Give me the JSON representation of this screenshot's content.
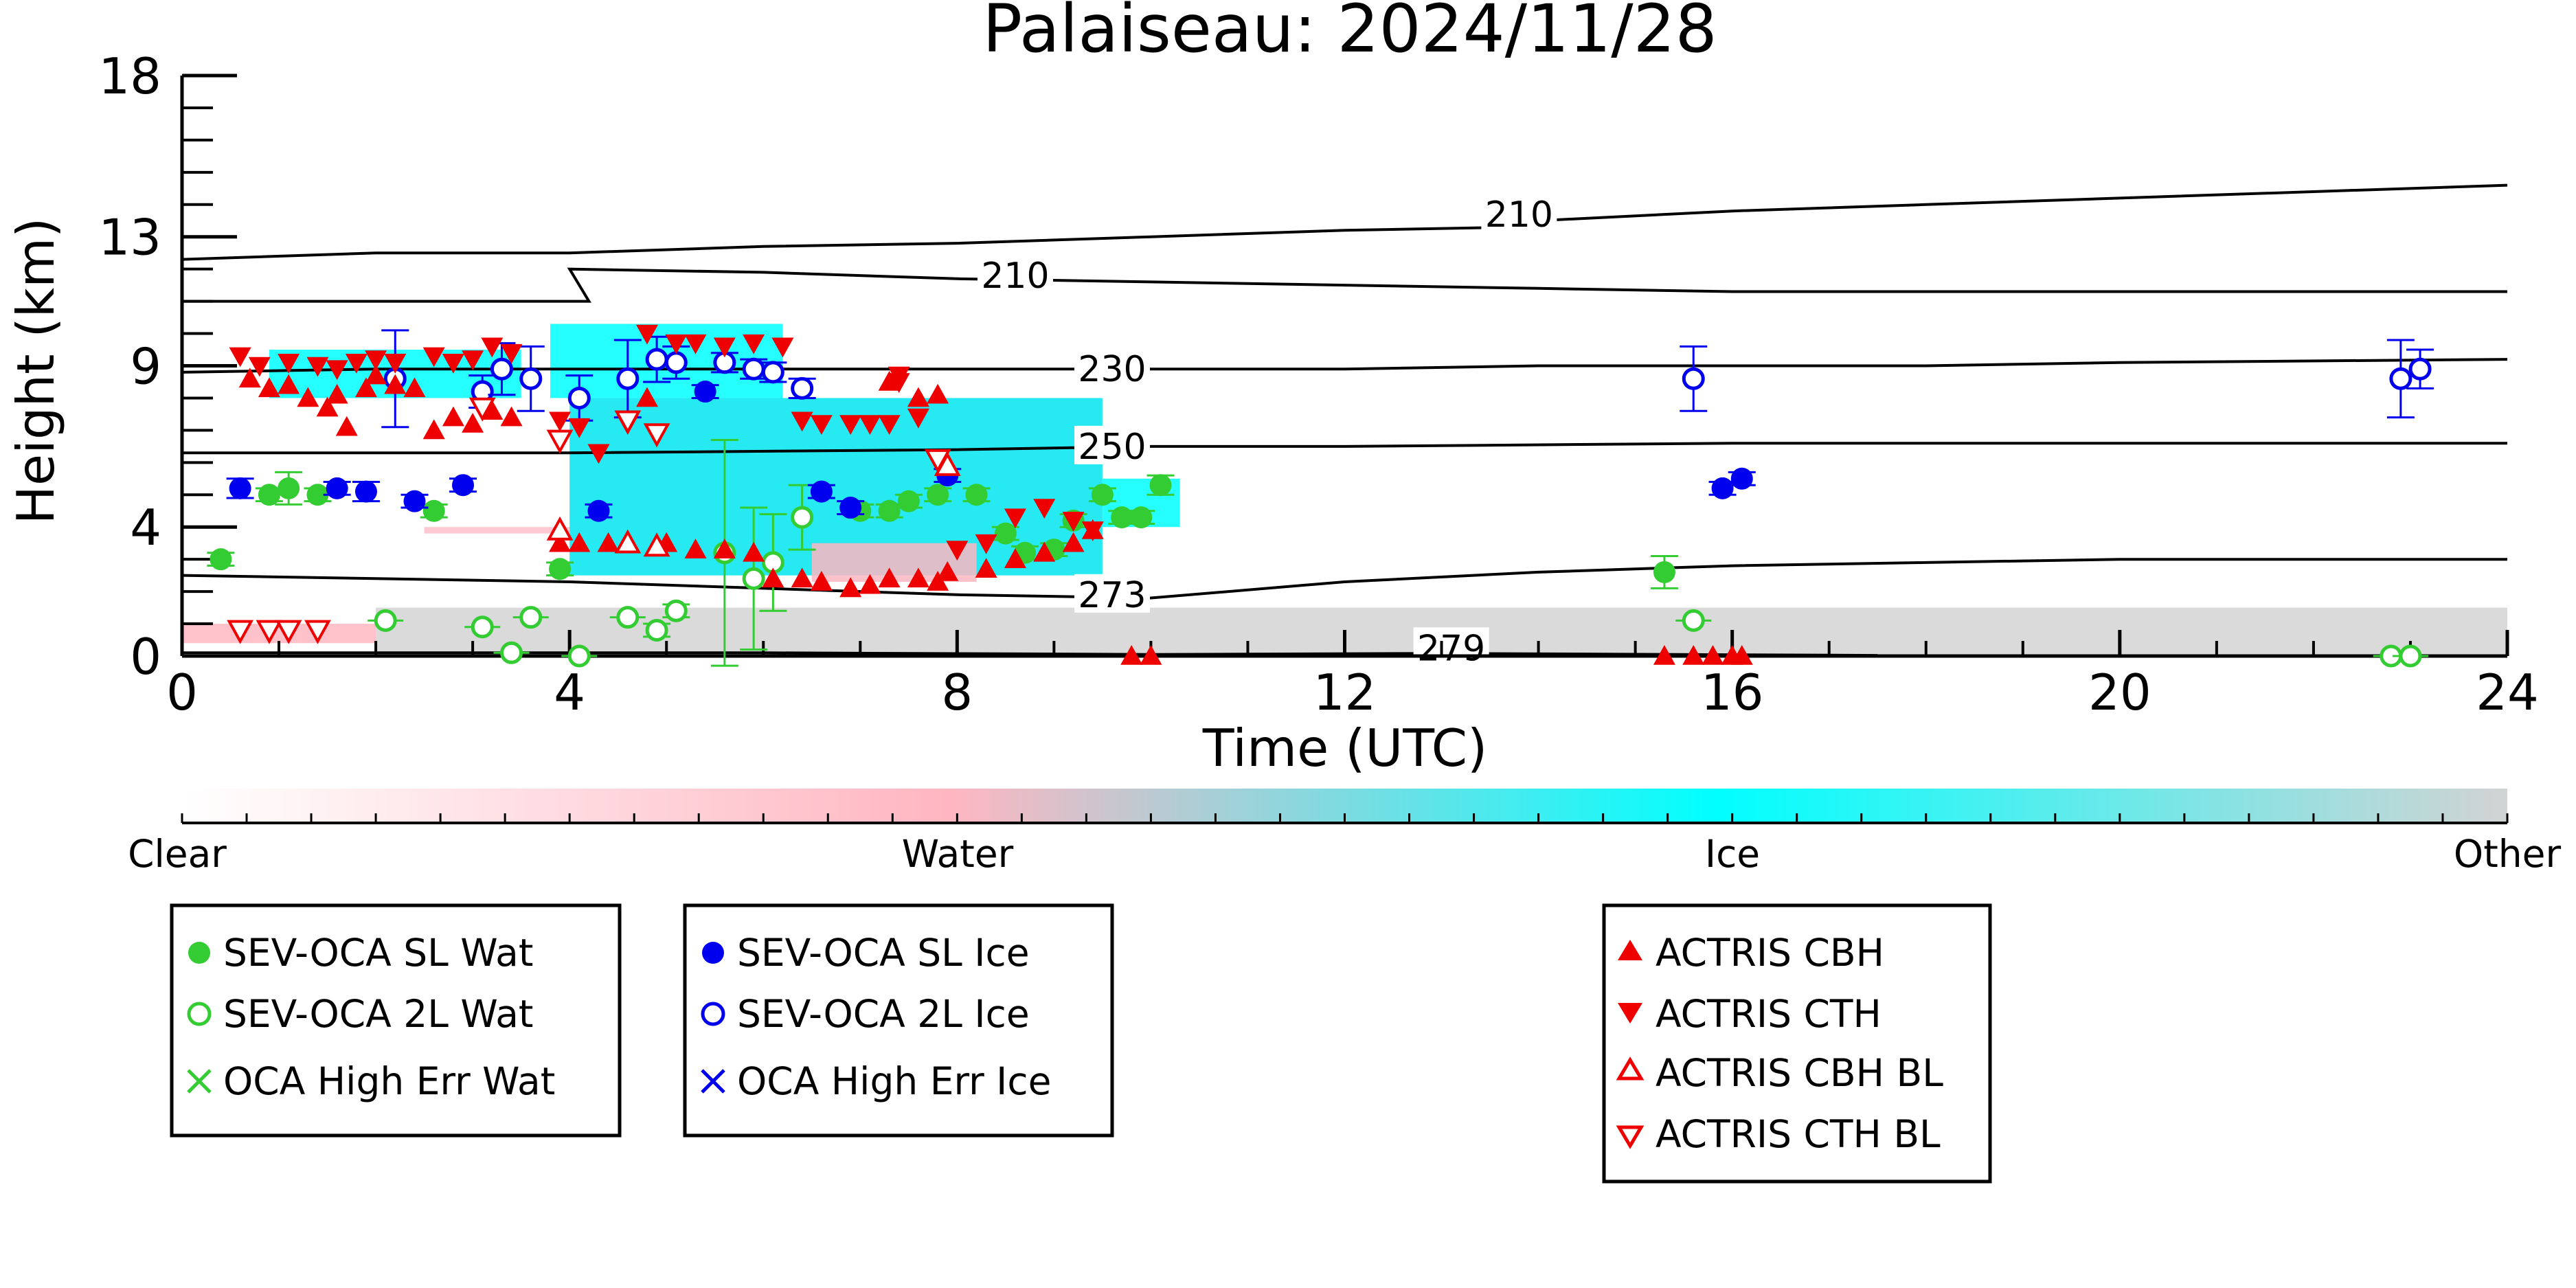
{
  "chart_data": {
    "type": "scatter",
    "title": "Palaiseau: 2024/11/28",
    "xlabel": "Time (UTC)",
    "ylabel": "Height (km)",
    "xlim": [
      0,
      24
    ],
    "ylim": [
      0,
      18
    ],
    "xticks": [
      0,
      4,
      8,
      12,
      16,
      20,
      24
    ],
    "yticks": [
      0,
      4,
      9,
      13,
      18
    ],
    "grid": false,
    "colorbar": {
      "labels": [
        "Clear",
        "Water",
        "Ice",
        "Other"
      ],
      "colors": [
        "#ffffff",
        "#ffb6c1",
        "#00ffff",
        "#d3d3d3"
      ]
    },
    "contours": [
      {
        "label": "210",
        "points": [
          [
            0,
            12.3
          ],
          [
            2,
            12.5
          ],
          [
            4,
            12.5
          ],
          [
            6,
            12.7
          ],
          [
            8,
            12.8
          ],
          [
            10,
            13.0
          ],
          [
            12,
            13.2
          ],
          [
            13.8,
            13.3
          ],
          [
            14,
            13.5
          ],
          [
            16,
            13.8
          ],
          [
            18,
            14.0
          ],
          [
            20,
            14.2
          ],
          [
            22,
            14.4
          ],
          [
            24,
            14.6
          ]
        ]
      },
      {
        "label": "210",
        "points": [
          [
            0,
            11.0
          ],
          [
            3,
            11.0
          ],
          [
            4.2,
            11.0
          ],
          [
            4,
            12.0
          ],
          [
            6,
            11.9
          ],
          [
            8,
            11.7
          ],
          [
            10,
            11.6
          ],
          [
            12,
            11.5
          ],
          [
            14,
            11.4
          ],
          [
            16,
            11.3
          ],
          [
            18,
            11.3
          ],
          [
            20,
            11.3
          ],
          [
            24,
            11.3
          ]
        ]
      },
      {
        "label": "230",
        "points": [
          [
            0,
            8.8
          ],
          [
            2,
            8.9
          ],
          [
            4,
            8.9
          ],
          [
            6,
            8.9
          ],
          [
            8,
            8.9
          ],
          [
            10,
            8.9
          ],
          [
            12,
            8.9
          ],
          [
            14,
            9.0
          ],
          [
            16,
            9.0
          ],
          [
            18,
            9.0
          ],
          [
            20,
            9.1
          ],
          [
            24,
            9.2
          ]
        ]
      },
      {
        "label": "250",
        "points": [
          [
            0,
            6.3
          ],
          [
            4,
            6.3
          ],
          [
            8,
            6.4
          ],
          [
            10,
            6.5
          ],
          [
            12,
            6.5
          ],
          [
            16,
            6.6
          ],
          [
            20,
            6.6
          ],
          [
            24,
            6.6
          ]
        ]
      },
      {
        "label": "273",
        "points": [
          [
            0,
            2.5
          ],
          [
            2,
            2.4
          ],
          [
            4,
            2.3
          ],
          [
            6,
            2.1
          ],
          [
            8,
            1.9
          ],
          [
            10,
            1.8
          ],
          [
            12,
            2.3
          ],
          [
            14,
            2.6
          ],
          [
            16,
            2.8
          ],
          [
            18,
            2.9
          ],
          [
            20,
            3.0
          ],
          [
            22,
            3.0
          ],
          [
            24,
            3.0
          ]
        ]
      },
      {
        "label": "279",
        "points": [
          [
            0,
            0.1
          ],
          [
            6,
            0.1
          ],
          [
            10,
            0.05
          ],
          [
            13,
            0.08
          ],
          [
            17.5,
            0.02
          ]
        ]
      }
    ],
    "series": [
      {
        "name": "SEV-OCA SL Wat",
        "color": "#33cc33",
        "marker": "circle-filled",
        "points": [
          [
            0.4,
            3.0,
            0.2
          ],
          [
            0.9,
            5.0,
            0.2
          ],
          [
            1.1,
            5.2,
            0.5
          ],
          [
            1.4,
            5.0,
            0.2
          ],
          [
            2.6,
            4.5,
            0.2
          ],
          [
            3.9,
            2.7,
            0.2
          ],
          [
            7.0,
            4.5,
            0.2
          ],
          [
            7.3,
            4.5,
            0.2
          ],
          [
            7.5,
            4.8,
            0.2
          ],
          [
            7.8,
            5.0,
            0.2
          ],
          [
            8.2,
            5.0,
            0.2
          ],
          [
            8.5,
            3.8,
            0.2
          ],
          [
            8.7,
            3.2,
            0.2
          ],
          [
            9.0,
            3.3,
            0.2
          ],
          [
            9.2,
            4.2,
            0.2
          ],
          [
            9.5,
            5.0,
            0.2
          ],
          [
            9.7,
            4.3,
            0.2
          ],
          [
            9.9,
            4.3,
            0.2
          ],
          [
            10.1,
            5.3,
            0.3
          ],
          [
            15.3,
            2.6,
            0.5
          ]
        ]
      },
      {
        "name": "SEV-OCA 2L Wat",
        "color": "#33cc33",
        "marker": "circle-open",
        "points": [
          [
            2.1,
            1.1,
            0.1
          ],
          [
            3.1,
            0.9,
            0.1
          ],
          [
            3.4,
            0.1,
            0.1
          ],
          [
            3.6,
            1.2,
            0.1
          ],
          [
            4.1,
            0.0,
            0.1
          ],
          [
            4.6,
            1.2,
            0.1
          ],
          [
            4.9,
            0.8,
            0.2
          ],
          [
            5.1,
            1.4,
            0.2
          ],
          [
            5.6,
            3.2,
            3.5
          ],
          [
            5.9,
            2.4,
            2.2
          ],
          [
            6.1,
            2.9,
            1.5
          ],
          [
            6.4,
            4.3,
            1.0
          ],
          [
            15.6,
            1.1,
            0.1
          ],
          [
            22.8,
            0.0,
            0.1
          ],
          [
            23.0,
            0.0,
            0.1
          ]
        ]
      },
      {
        "name": "OCA High Err Wat",
        "color": "#33cc33",
        "marker": "x",
        "points": []
      },
      {
        "name": "SEV-OCA SL Ice",
        "color": "#0000ee",
        "marker": "circle-filled",
        "points": [
          [
            0.6,
            5.2,
            0.3
          ],
          [
            1.6,
            5.2,
            0.2
          ],
          [
            1.9,
            5.1,
            0.3
          ],
          [
            2.4,
            4.8,
            0.2
          ],
          [
            2.9,
            5.3,
            0.2
          ],
          [
            4.3,
            4.5,
            0.2
          ],
          [
            5.4,
            8.2,
            0.2
          ],
          [
            6.6,
            5.1,
            0.2
          ],
          [
            6.9,
            4.6,
            0.2
          ],
          [
            7.9,
            5.6,
            0.2
          ],
          [
            15.9,
            5.2,
            0.2
          ],
          [
            16.1,
            5.5,
            0.2
          ]
        ]
      },
      {
        "name": "SEV-OCA 2L Ice",
        "color": "#0000ee",
        "marker": "circle-open",
        "points": [
          [
            2.2,
            8.6,
            1.5
          ],
          [
            3.1,
            8.2,
            0.5
          ],
          [
            3.3,
            8.9,
            0.8
          ],
          [
            3.6,
            8.6,
            1.0
          ],
          [
            4.1,
            8.0,
            0.7
          ],
          [
            4.6,
            8.6,
            1.2
          ],
          [
            4.9,
            9.2,
            0.7
          ],
          [
            5.1,
            9.1,
            0.5
          ],
          [
            5.6,
            9.1,
            0.3
          ],
          [
            5.9,
            8.9,
            0.3
          ],
          [
            6.1,
            8.8,
            0.3
          ],
          [
            6.4,
            8.3,
            0.3
          ],
          [
            15.6,
            8.6,
            1.0
          ],
          [
            22.9,
            8.6,
            1.2
          ],
          [
            23.1,
            8.9,
            0.6
          ]
        ]
      },
      {
        "name": "OCA High Err Ice",
        "color": "#0000ee",
        "marker": "x",
        "points": []
      },
      {
        "name": "ACTRIS CBH",
        "color": "#ee0000",
        "marker": "triangle-up-filled",
        "points": [
          [
            0.7,
            8.6
          ],
          [
            0.9,
            8.3
          ],
          [
            1.1,
            8.4
          ],
          [
            1.3,
            8.0
          ],
          [
            1.5,
            7.7
          ],
          [
            1.6,
            8.1
          ],
          [
            1.7,
            7.1
          ],
          [
            1.9,
            8.3
          ],
          [
            2.0,
            8.7
          ],
          [
            2.2,
            8.4
          ],
          [
            2.4,
            8.3
          ],
          [
            2.6,
            7.0
          ],
          [
            2.8,
            7.4
          ],
          [
            3.0,
            7.2
          ],
          [
            3.2,
            7.6
          ],
          [
            3.4,
            7.4
          ],
          [
            3.9,
            3.5
          ],
          [
            4.1,
            3.5
          ],
          [
            4.4,
            3.5
          ],
          [
            4.6,
            3.5
          ],
          [
            4.8,
            8.0
          ],
          [
            5.0,
            3.5
          ],
          [
            5.3,
            3.3
          ],
          [
            5.6,
            3.3
          ],
          [
            5.9,
            3.2
          ],
          [
            6.1,
            2.4
          ],
          [
            6.4,
            2.4
          ],
          [
            6.6,
            2.3
          ],
          [
            6.9,
            2.1
          ],
          [
            7.1,
            2.2
          ],
          [
            7.3,
            2.4
          ],
          [
            7.6,
            2.4
          ],
          [
            7.8,
            2.3
          ],
          [
            7.9,
            2.6
          ],
          [
            8.3,
            2.7
          ],
          [
            8.6,
            3.0
          ],
          [
            8.9,
            3.2
          ],
          [
            9.2,
            3.5
          ],
          [
            9.4,
            3.9
          ],
          [
            9.8,
            0.0
          ],
          [
            10.0,
            0.0
          ],
          [
            15.3,
            0.0
          ],
          [
            15.6,
            0.0
          ],
          [
            15.8,
            0.0
          ],
          [
            16.0,
            0.0
          ],
          [
            16.1,
            0.0
          ],
          [
            7.3,
            8.5
          ],
          [
            7.6,
            8.0
          ],
          [
            7.8,
            8.1
          ]
        ]
      },
      {
        "name": "ACTRIS CTH",
        "color": "#ee0000",
        "marker": "triangle-down-filled",
        "points": [
          [
            0.6,
            9.3
          ],
          [
            0.8,
            9.0
          ],
          [
            1.1,
            9.1
          ],
          [
            1.4,
            9.0
          ],
          [
            1.6,
            8.9
          ],
          [
            1.8,
            9.1
          ],
          [
            2.0,
            9.2
          ],
          [
            2.2,
            9.1
          ],
          [
            2.6,
            9.3
          ],
          [
            2.8,
            9.1
          ],
          [
            3.0,
            9.2
          ],
          [
            3.2,
            9.6
          ],
          [
            3.4,
            9.4
          ],
          [
            3.9,
            7.3
          ],
          [
            4.1,
            7.1
          ],
          [
            4.3,
            6.3
          ],
          [
            4.6,
            7.2
          ],
          [
            4.8,
            10.0
          ],
          [
            5.1,
            9.7
          ],
          [
            5.3,
            9.7
          ],
          [
            5.6,
            9.6
          ],
          [
            5.9,
            9.7
          ],
          [
            6.2,
            9.6
          ],
          [
            6.4,
            7.3
          ],
          [
            6.6,
            7.2
          ],
          [
            6.9,
            7.2
          ],
          [
            7.1,
            7.2
          ],
          [
            7.3,
            7.2
          ],
          [
            7.4,
            8.7
          ],
          [
            7.6,
            7.4
          ],
          [
            8.0,
            3.3
          ],
          [
            8.3,
            3.5
          ],
          [
            8.6,
            4.3
          ],
          [
            8.9,
            4.6
          ],
          [
            9.2,
            4.2
          ],
          [
            9.4,
            3.9
          ],
          [
            7.4,
            8.5
          ]
        ]
      },
      {
        "name": "ACTRIS CBH BL",
        "color": "#ee0000",
        "marker": "triangle-up-open",
        "points": [
          [
            3.9,
            3.9
          ],
          [
            4.6,
            3.5
          ],
          [
            4.9,
            3.4
          ],
          [
            7.9,
            5.9
          ]
        ]
      },
      {
        "name": "ACTRIS CTH BL",
        "color": "#ee0000",
        "marker": "triangle-down-open",
        "points": [
          [
            0.6,
            0.8
          ],
          [
            0.9,
            0.8
          ],
          [
            1.1,
            0.8
          ],
          [
            1.4,
            0.8
          ],
          [
            3.1,
            7.7
          ],
          [
            3.9,
            6.7
          ],
          [
            4.6,
            7.3
          ],
          [
            4.9,
            6.9
          ],
          [
            7.8,
            6.1
          ]
        ]
      }
    ]
  },
  "legends": [
    {
      "items": [
        "SEV-OCA SL Wat",
        "SEV-OCA 2L Wat",
        "OCA High Err Wat"
      ]
    },
    {
      "items": [
        "SEV-OCA SL Ice",
        "SEV-OCA 2L Ice",
        "OCA High Err Ice"
      ]
    },
    {
      "items": [
        "ACTRIS CBH",
        "ACTRIS CTH",
        "ACTRIS CBH BL",
        "ACTRIS CTH BL"
      ]
    }
  ]
}
